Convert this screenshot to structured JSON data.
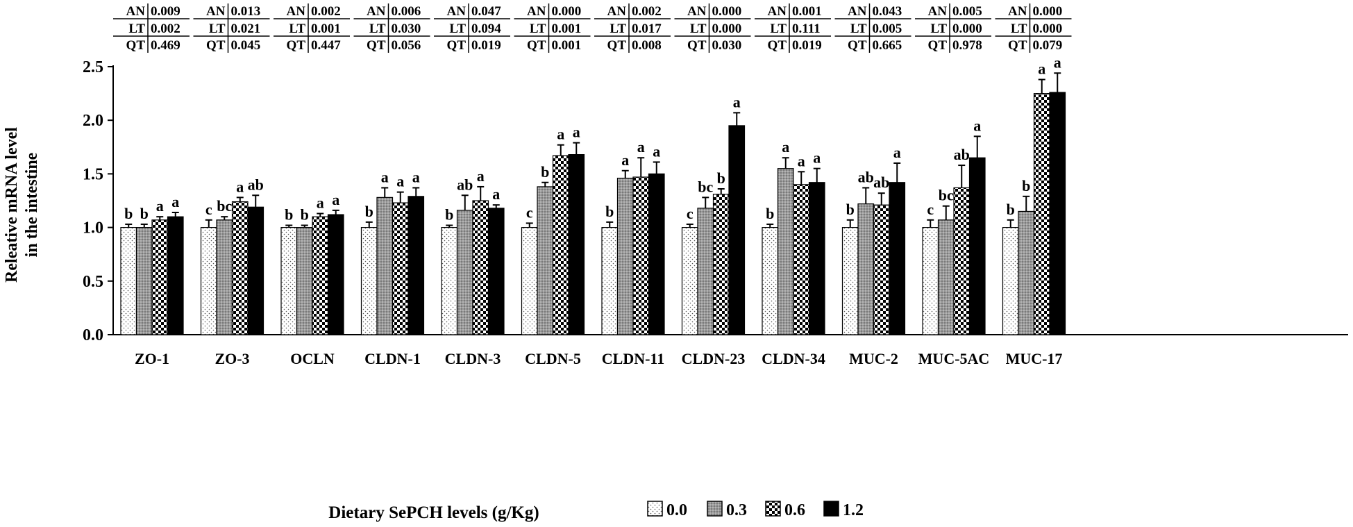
{
  "chart_data": {
    "type": "bar",
    "title": "",
    "xlabel": "Dietary SePCH levels (g/Kg)",
    "ylabel_lines": [
      "Releative mRNA level",
      "in the intestine"
    ],
    "ylim": [
      0,
      2.5
    ],
    "yticks": [
      "0.0",
      "0.5",
      "1.0",
      "1.5",
      "2.0",
      "2.5"
    ],
    "categories": [
      "ZO-1",
      "ZO-3",
      "OCLN",
      "CLDN-1",
      "CLDN-3",
      "CLDN-5",
      "CLDN-11",
      "CLDN-23",
      "CLDN-34",
      "MUC-2",
      "MUC-5AC",
      "MUC-17"
    ],
    "series": [
      {
        "name": "0.0",
        "pattern": "dots",
        "values": [
          1.0,
          1.0,
          1.0,
          1.0,
          1.0,
          1.0,
          1.0,
          1.0,
          1.0,
          1.0,
          1.0,
          1.0
        ],
        "errors": [
          0.03,
          0.07,
          0.02,
          0.05,
          0.02,
          0.04,
          0.05,
          0.03,
          0.03,
          0.07,
          0.07,
          0.07
        ],
        "letters": [
          "b",
          "c",
          "b",
          "b",
          "b",
          "c",
          "b",
          "c",
          "b",
          "b",
          "c",
          "b"
        ]
      },
      {
        "name": "0.3",
        "pattern": "gray",
        "values": [
          1.0,
          1.07,
          1.0,
          1.28,
          1.16,
          1.38,
          1.46,
          1.18,
          1.55,
          1.22,
          1.07,
          1.15
        ],
        "errors": [
          0.03,
          0.03,
          0.02,
          0.09,
          0.14,
          0.04,
          0.07,
          0.1,
          0.1,
          0.15,
          0.13,
          0.14
        ],
        "letters": [
          "b",
          "bc",
          "b",
          "a",
          "ab",
          "b",
          "a",
          "bc",
          "a",
          "ab",
          "bc",
          "b"
        ]
      },
      {
        "name": "0.6",
        "pattern": "checker",
        "values": [
          1.07,
          1.24,
          1.1,
          1.23,
          1.25,
          1.67,
          1.47,
          1.31,
          1.4,
          1.21,
          1.37,
          2.25
        ],
        "errors": [
          0.03,
          0.04,
          0.03,
          0.1,
          0.13,
          0.1,
          0.18,
          0.05,
          0.12,
          0.11,
          0.21,
          0.13
        ],
        "letters": [
          "a",
          "a",
          "a",
          "a",
          "a",
          "a",
          "a",
          "b",
          "a",
          "ab",
          "ab",
          "a"
        ]
      },
      {
        "name": "1.2",
        "pattern": "black",
        "values": [
          1.1,
          1.19,
          1.12,
          1.29,
          1.18,
          1.68,
          1.5,
          1.95,
          1.42,
          1.42,
          1.65,
          2.26
        ],
        "errors": [
          0.04,
          0.11,
          0.04,
          0.08,
          0.03,
          0.11,
          0.11,
          0.12,
          0.13,
          0.18,
          0.2,
          0.18
        ],
        "letters": [
          "a",
          "ab",
          "a",
          "a",
          "a",
          "a",
          "a",
          "a",
          "a",
          "a",
          "a",
          "a"
        ]
      }
    ],
    "stats_tables": [
      [
        {
          "label": "AN",
          "value": "0.009"
        },
        {
          "label": "LT",
          "value": "0.002"
        },
        {
          "label": "QT",
          "value": "0.469"
        }
      ],
      [
        {
          "label": "AN",
          "value": "0.013"
        },
        {
          "label": "LT",
          "value": "0.021"
        },
        {
          "label": "QT",
          "value": "0.045"
        }
      ],
      [
        {
          "label": "AN",
          "value": "0.002"
        },
        {
          "label": "LT",
          "value": "0.001"
        },
        {
          "label": "QT",
          "value": "0.447"
        }
      ],
      [
        {
          "label": "AN",
          "value": "0.006"
        },
        {
          "label": "LT",
          "value": "0.030"
        },
        {
          "label": "QT",
          "value": "0.056"
        }
      ],
      [
        {
          "label": "AN",
          "value": "0.047"
        },
        {
          "label": "LT",
          "value": "0.094"
        },
        {
          "label": "QT",
          "value": "0.019"
        }
      ],
      [
        {
          "label": "AN",
          "value": "0.000"
        },
        {
          "label": "LT",
          "value": "0.001"
        },
        {
          "label": "QT",
          "value": "0.001"
        }
      ],
      [
        {
          "label": "AN",
          "value": "0.002"
        },
        {
          "label": "LT",
          "value": "0.017"
        },
        {
          "label": "QT",
          "value": "0.008"
        }
      ],
      [
        {
          "label": "AN",
          "value": "0.000"
        },
        {
          "label": "LT",
          "value": "0.000"
        },
        {
          "label": "QT",
          "value": "0.030"
        }
      ],
      [
        {
          "label": "AN",
          "value": "0.001"
        },
        {
          "label": "LT",
          "value": "0.111"
        },
        {
          "label": "QT",
          "value": "0.019"
        }
      ],
      [
        {
          "label": "AN",
          "value": "0.043"
        },
        {
          "label": "LT",
          "value": "0.005"
        },
        {
          "label": "QT",
          "value": "0.665"
        }
      ],
      [
        {
          "label": "AN",
          "value": "0.005"
        },
        {
          "label": "LT",
          "value": "0.000"
        },
        {
          "label": "QT",
          "value": "0.978"
        }
      ],
      [
        {
          "label": "AN",
          "value": "0.000"
        },
        {
          "label": "LT",
          "value": "0.000"
        },
        {
          "label": "QT",
          "value": "0.079"
        }
      ]
    ],
    "legend_position": "bottom-right"
  }
}
